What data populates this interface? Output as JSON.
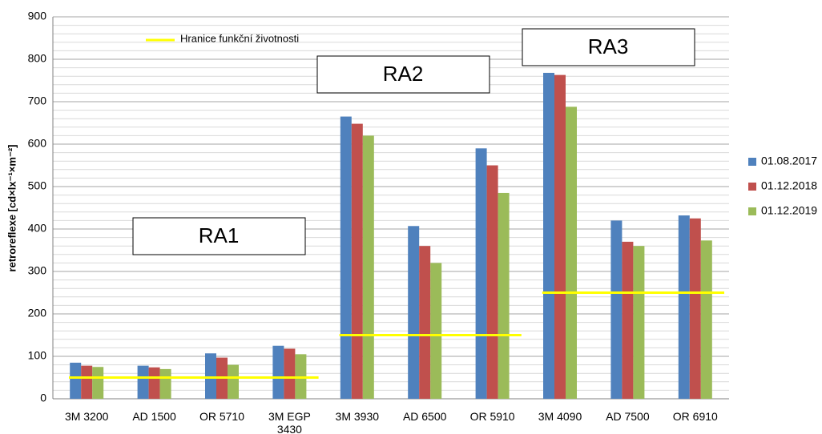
{
  "chart_data": {
    "type": "bar",
    "ylabel": "retroreflexe  [cd×lx⁻¹×m⁻²]",
    "categories": [
      "3M 3200",
      "AD 1500",
      "OR 5710",
      "3M EGP\n3430",
      "3M 3930",
      "AD 6500",
      "OR 5910",
      "3M 4090",
      "AD 7500",
      "OR 6910"
    ],
    "series": [
      {
        "name": "01.08.2017",
        "color": "#4f81bd",
        "values": [
          85,
          78,
          107,
          125,
          665,
          407,
          590,
          768,
          420,
          432
        ]
      },
      {
        "name": "01.12.2018",
        "color": "#c0504d",
        "values": [
          78,
          74,
          97,
          118,
          648,
          360,
          550,
          763,
          370,
          425
        ]
      },
      {
        "name": "01.12.2019",
        "color": "#9bbb59",
        "values": [
          75,
          70,
          80,
          105,
          620,
          320,
          485,
          688,
          360,
          373
        ]
      }
    ],
    "threshold": {
      "name": "Hranice funkční životnosti",
      "color": "#ffff00",
      "groups": [
        {
          "label": "RA1",
          "value": 50,
          "categories": [
            "3M 3200",
            "AD 1500",
            "OR 5710",
            "3M EGP\n3430"
          ]
        },
        {
          "label": "RA2",
          "value": 150,
          "categories": [
            "3M 3930",
            "AD 6500",
            "OR 5910"
          ]
        },
        {
          "label": "RA3",
          "value": 250,
          "categories": [
            "3M 4090",
            "AD 7500",
            "OR 6910"
          ]
        }
      ]
    },
    "ylim": [
      0,
      900
    ],
    "yticks": [
      0,
      100,
      200,
      300,
      400,
      500,
      600,
      700,
      800,
      900
    ],
    "grid": true,
    "minor_grid_step": 20,
    "legend": "right"
  }
}
